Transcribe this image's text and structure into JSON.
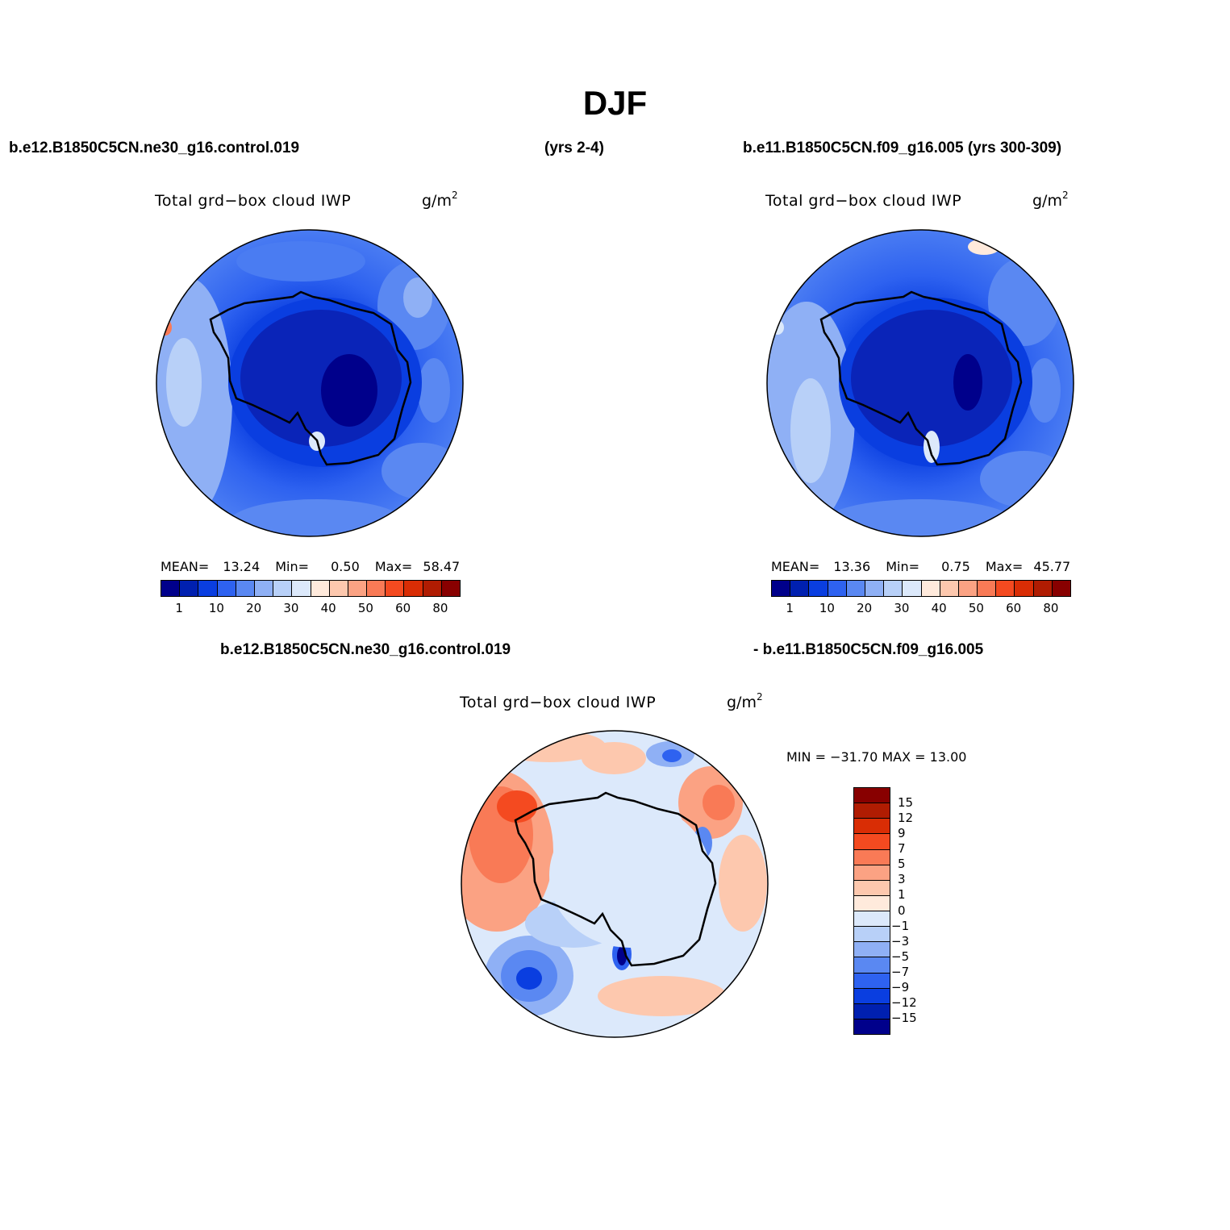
{
  "title": "DJF",
  "panel1": {
    "case": "b.e12.B1850C5CN.ne30_g16.control.019",
    "years": "(yrs 2-4)",
    "plot_title": "Total grd−box cloud IWP",
    "units_base": "g/m",
    "units_sup": "2",
    "stats": {
      "mean_label": "MEAN=",
      "mean": "13.24",
      "min_label": "Min=",
      "min": "0.50",
      "max_label": "Max=",
      "max": "58.47"
    }
  },
  "panel2": {
    "case": "b.e11.B1850C5CN.f09_g16.005 (yrs 300-309)",
    "plot_title": "Total grd−box cloud IWP",
    "units_base": "g/m",
    "units_sup": "2",
    "stats": {
      "mean_label": "MEAN=",
      "mean": "13.36",
      "min_label": "Min=",
      "min": "0.75",
      "max_label": "Max=",
      "max": "45.77"
    }
  },
  "panel3": {
    "case_left": "b.e12.B1850C5CN.ne30_g16.control.019",
    "case_right": "- b.e11.B1850C5CN.f09_g16.005",
    "plot_title": "Total grd−box cloud IWP",
    "units_base": "g/m",
    "units_sup": "2",
    "minmax": "MIN = −31.70 MAX =   13.00"
  },
  "colorbar_abs": {
    "colors": [
      "#00008b",
      "#0020b0",
      "#0a3ee0",
      "#2e62f0",
      "#5a88f2",
      "#8fb0f5",
      "#b8d0f8",
      "#dce9fb",
      "#ffeadc",
      "#fdc8ae",
      "#fba283",
      "#f97a56",
      "#f44a20",
      "#d92d05",
      "#b01c02",
      "#880000"
    ],
    "ticks": [
      "1",
      "10",
      "20",
      "30",
      "40",
      "50",
      "60",
      "80"
    ]
  },
  "colorbar_diff": {
    "colors": [
      "#880000",
      "#b01c02",
      "#d92d05",
      "#f44a20",
      "#f97a56",
      "#fba283",
      "#fdc8ae",
      "#ffeadc",
      "#dce9fb",
      "#b8d0f8",
      "#8fb0f5",
      "#5a88f2",
      "#2e62f0",
      "#0a3ee0",
      "#0020b0",
      "#00008b"
    ],
    "ticks": [
      "15",
      "12",
      "9",
      "7",
      "5",
      "3",
      "1",
      "0",
      "−1",
      "−3",
      "−5",
      "−7",
      "−9",
      "−12",
      "−15"
    ]
  }
}
